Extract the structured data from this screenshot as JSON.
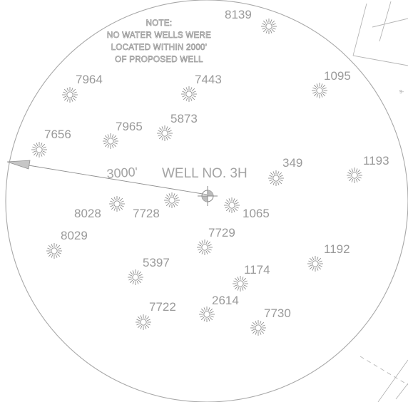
{
  "note": {
    "lines": [
      "NOTE:",
      "NO WATER WELLS WERE",
      "LOCATED WITHIN 2000'",
      "OF PROPOSED WELL"
    ]
  },
  "well": {
    "name": "WELL NO. 3H",
    "radius_label": "3000'"
  },
  "edge_mark": "9-",
  "water_wells": [
    {
      "label": "8139"
    },
    {
      "label": "1095"
    },
    {
      "label": "7964"
    },
    {
      "label": "7443"
    },
    {
      "label": "7965"
    },
    {
      "label": "5873"
    },
    {
      "label": "7656"
    },
    {
      "label": "349"
    },
    {
      "label": "1193"
    },
    {
      "label": "8028"
    },
    {
      "label": "7728"
    },
    {
      "label": "1065"
    },
    {
      "label": "8029"
    },
    {
      "label": "7729"
    },
    {
      "label": "1192"
    },
    {
      "label": "5397"
    },
    {
      "label": "1174"
    },
    {
      "label": "7722"
    },
    {
      "label": "2614"
    },
    {
      "label": "7730"
    }
  ]
}
